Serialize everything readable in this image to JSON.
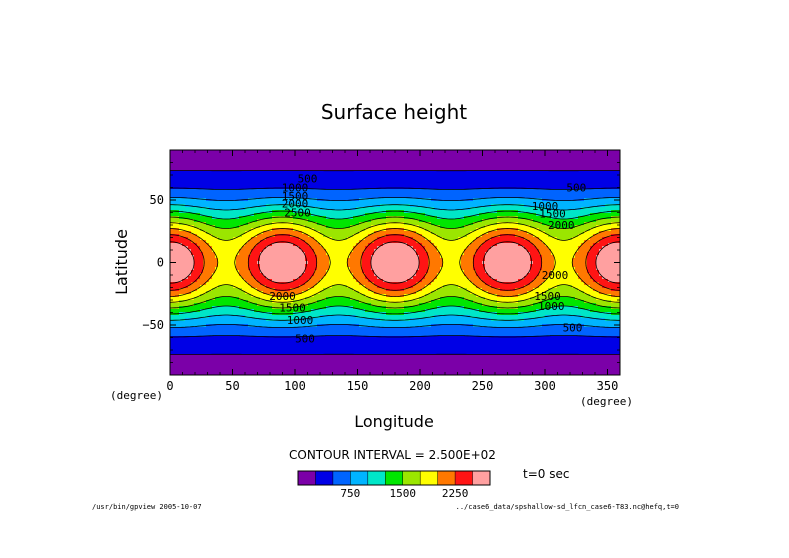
{
  "chart_data": {
    "type": "heatmap",
    "title": "Surface height",
    "xlabel": "Longitude",
    "ylabel": "Latitude",
    "x_unit": "(degree)",
    "y_unit": "(degree)",
    "xlim": [
      0,
      360
    ],
    "ylim": [
      -90,
      90
    ],
    "x_ticks": [
      "0",
      "50",
      "100",
      "150",
      "200",
      "250",
      "300",
      "350"
    ],
    "y_ticks": [
      "50",
      "0",
      "−50"
    ],
    "contour_interval_text": "CONTOUR INTERVAL = 2.500E+02",
    "time_text": "t=0 sec",
    "levels": [
      250,
      500,
      750,
      1000,
      1250,
      1500,
      1750,
      2000,
      2250,
      2500
    ],
    "colors": [
      "#7b00a8",
      "#0000e6",
      "#0064ff",
      "#00b4ff",
      "#00e6c8",
      "#00e600",
      "#9be600",
      "#ffff00",
      "#ff7800",
      "#ff1414",
      "#ffa0a0"
    ],
    "colorbar_tick_labels": [
      "750",
      "1500",
      "2250"
    ],
    "contour_labels": [
      {
        "text": "500",
        "lon": 110,
        "lat": 64
      },
      {
        "text": "1000",
        "lon": 100,
        "lat": 57
      },
      {
        "text": "1500",
        "lon": 100,
        "lat": 50
      },
      {
        "text": "2000",
        "lon": 100,
        "lat": 44
      },
      {
        "text": "2500",
        "lon": 102,
        "lat": 37
      },
      {
        "text": "500",
        "lon": 325,
        "lat": 57
      },
      {
        "text": "1000",
        "lon": 300,
        "lat": 42
      },
      {
        "text": "1500",
        "lon": 306,
        "lat": 36
      },
      {
        "text": "2000",
        "lon": 313,
        "lat": 27
      },
      {
        "text": "2000",
        "lon": 90,
        "lat": -30
      },
      {
        "text": "1500",
        "lon": 98,
        "lat": -39
      },
      {
        "text": "1000",
        "lon": 104,
        "lat": -49
      },
      {
        "text": "500",
        "lon": 108,
        "lat": -64
      },
      {
        "text": "2000",
        "lon": 308,
        "lat": -13
      },
      {
        "text": "1500",
        "lon": 302,
        "lat": -30
      },
      {
        "text": "1000",
        "lon": 305,
        "lat": -38
      },
      {
        "text": "500",
        "lon": 322,
        "lat": -55
      }
    ]
  },
  "footer": {
    "left": "/usr/bin/gpview  2005-10-07",
    "right": "../case6_data/spshallow-sd_lfcn_case6-T83.nc@hefq,t=0"
  }
}
